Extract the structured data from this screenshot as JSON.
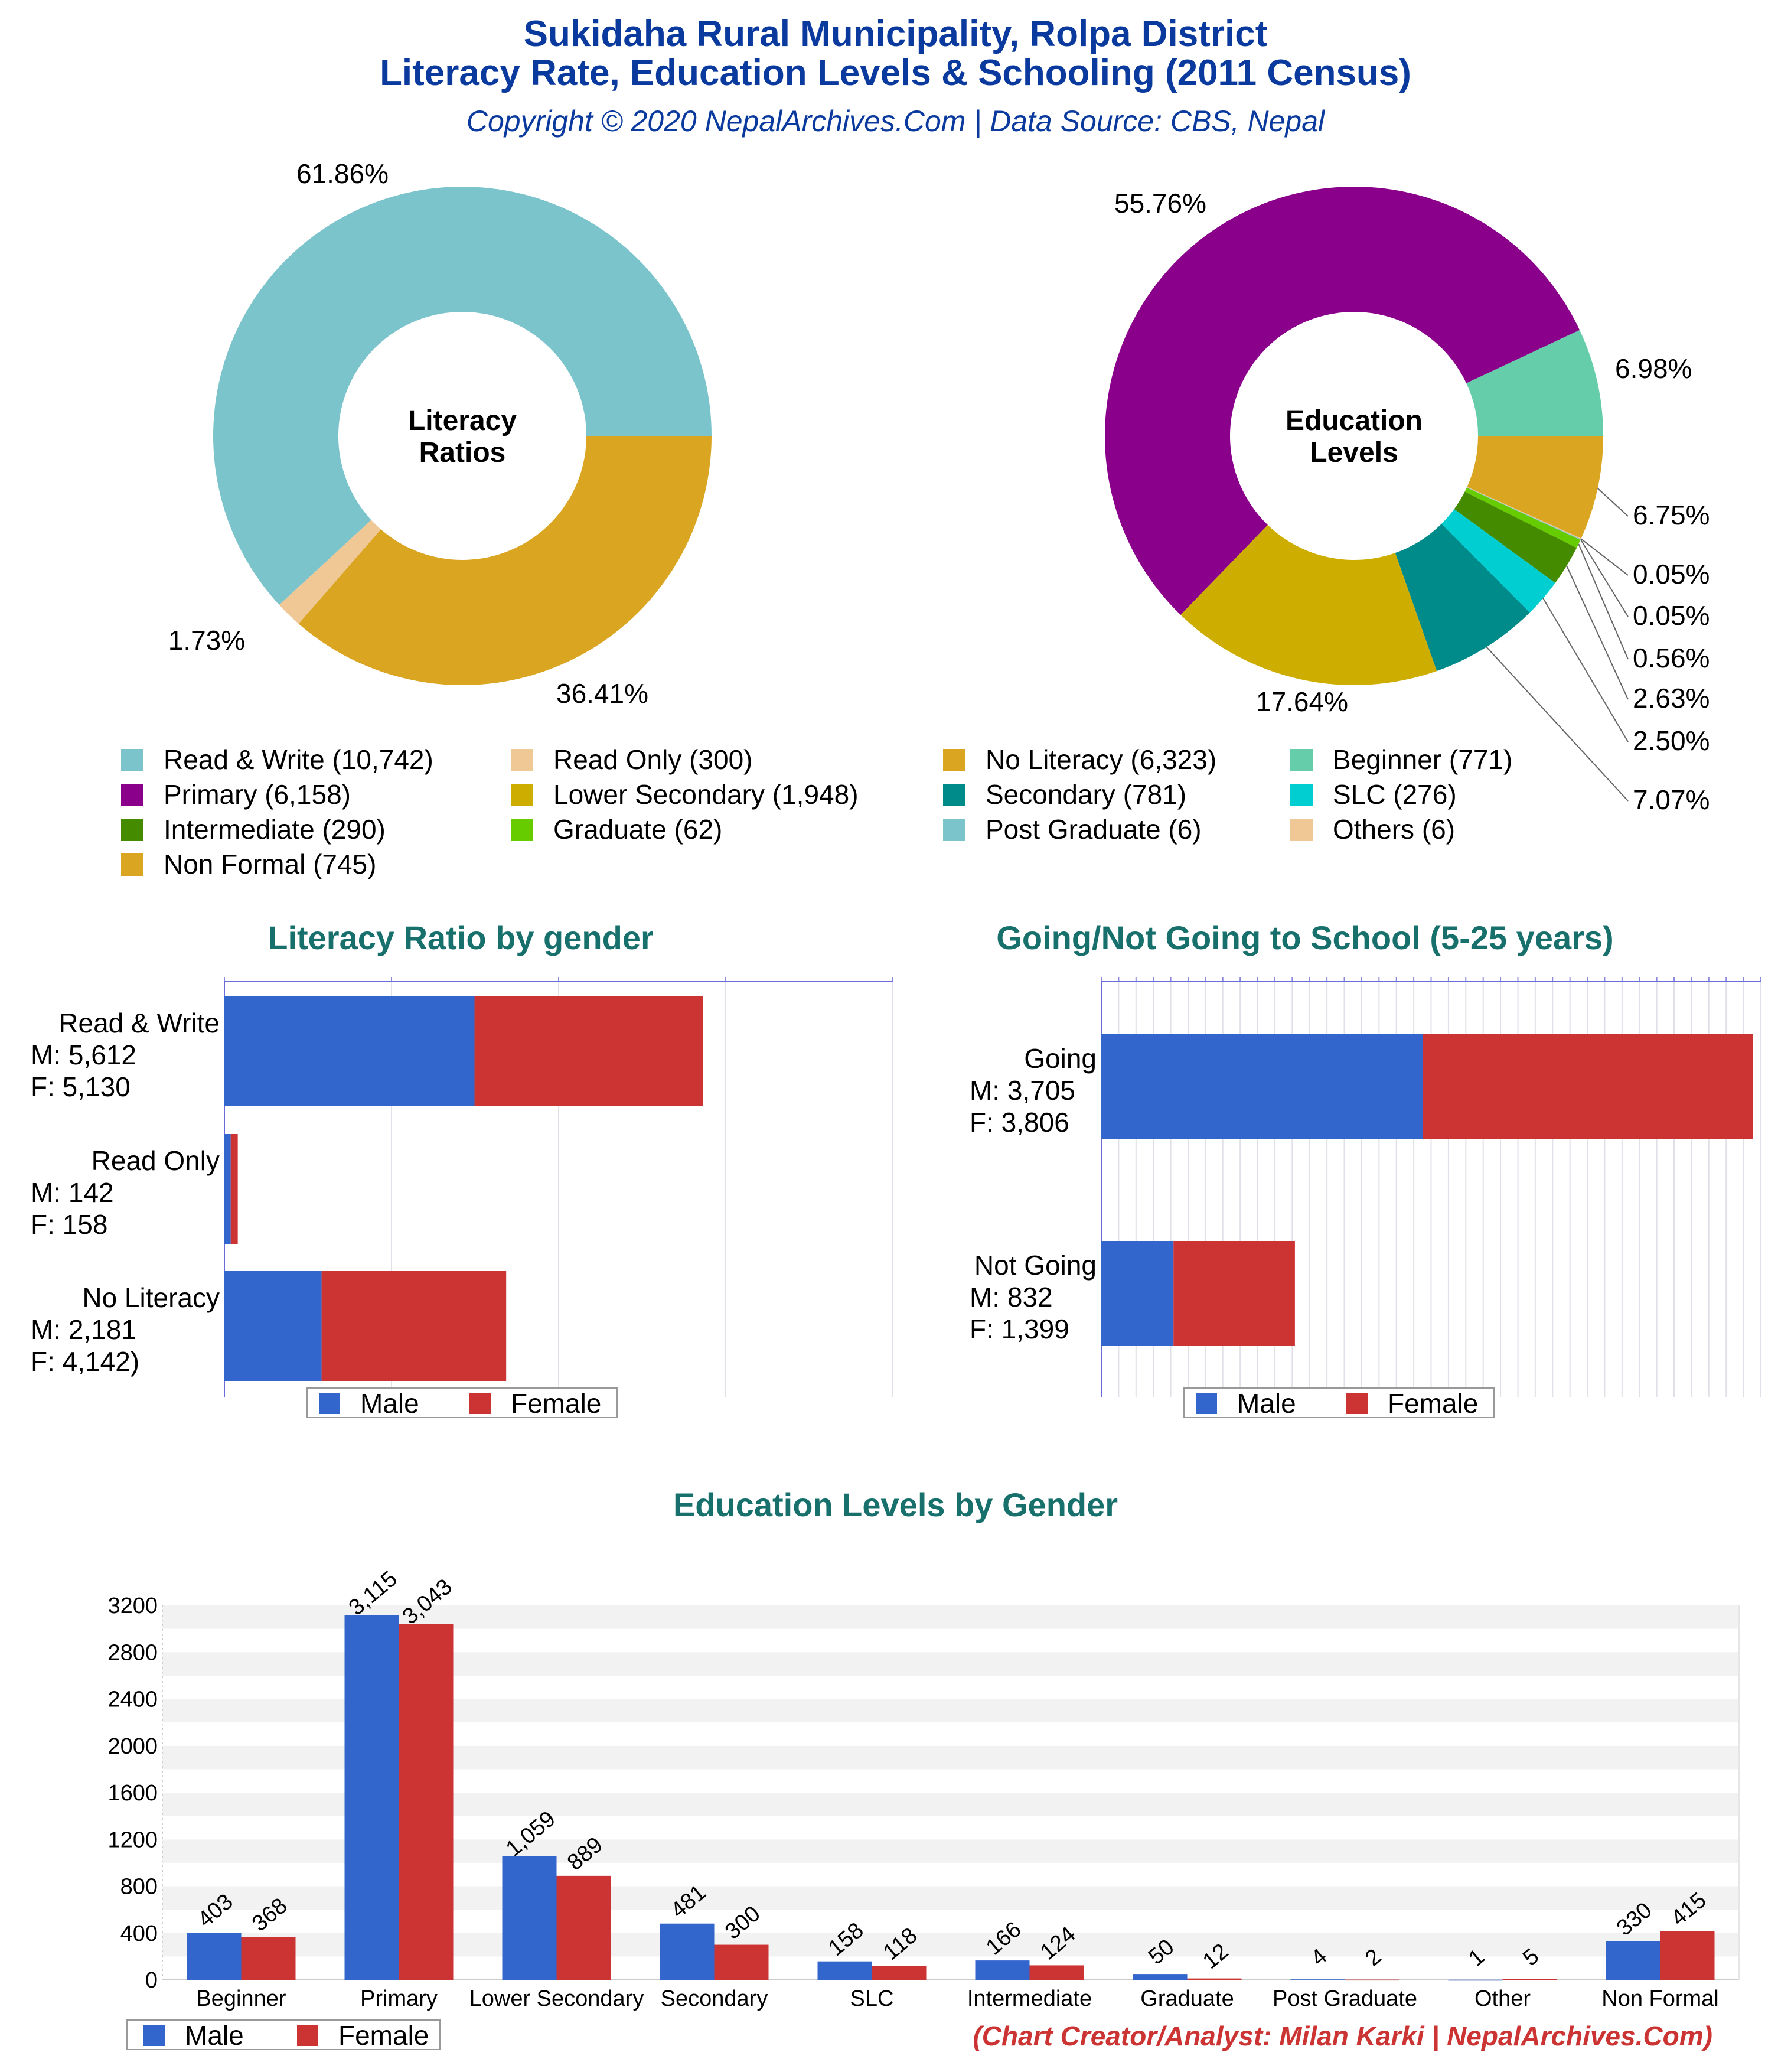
{
  "header": {
    "title_line1": "Sukidaha Rural Municipality, Rolpa District",
    "title_line2": "Literacy Rate, Education Levels & Schooling (2011 Census)",
    "subtitle": "Copyright © 2020 NepalArchives.Com | Data Source: CBS, Nepal"
  },
  "credit": "(Chart Creator/Analyst: Milan Karki | NepalArchives.Com)",
  "chart_data": [
    {
      "type": "pie",
      "center_label": [
        "Literacy",
        "Ratios"
      ],
      "slices": [
        {
          "label": "Read & Write",
          "value": 10742,
          "percent": "61.86%",
          "color": "#7cc4cc"
        },
        {
          "label": "Read Only",
          "value": 300,
          "percent": "1.73%",
          "color": "#f0c896"
        },
        {
          "label": "No Literacy",
          "value": 6323,
          "percent": "36.41%",
          "color": "#daa520"
        }
      ]
    },
    {
      "type": "pie",
      "center_label": [
        "Education",
        "Levels"
      ],
      "slices": [
        {
          "label": "Beginner",
          "value": 771,
          "percent": "6.98%",
          "color": "#66cdaa"
        },
        {
          "label": "Non Formal",
          "value": 745,
          "percent": "6.75%",
          "color": "#daa520"
        },
        {
          "label": "Others",
          "value": 6,
          "percent": "0.05%",
          "color": "#f0c896"
        },
        {
          "label": "Post Graduate",
          "value": 6,
          "percent": "0.05%",
          "color": "#7cc4cc"
        },
        {
          "label": "Graduate",
          "value": 62,
          "percent": "0.56%",
          "color": "#66cc00"
        },
        {
          "label": "Intermediate",
          "value": 290,
          "percent": "2.63%",
          "color": "#458b00"
        },
        {
          "label": "SLC",
          "value": 276,
          "percent": "2.50%",
          "color": "#00ced1"
        },
        {
          "label": "Secondary",
          "value": 781,
          "percent": "7.07%",
          "color": "#008b8b"
        },
        {
          "label": "Lower Secondary",
          "value": 1948,
          "percent": "17.64%",
          "color": "#cdad00"
        },
        {
          "label": "Primary",
          "value": 6158,
          "percent": "55.76%",
          "color": "#8b008b"
        }
      ]
    },
    {
      "type": "bar",
      "orientation": "horizontal",
      "stacked": true,
      "title": "Literacy Ratio by gender",
      "categories": [
        {
          "name": "Read & Write",
          "m_text": "M: 5,612",
          "f_text": "F: 5,130"
        },
        {
          "name": "Read Only",
          "m_text": "M: 142",
          "f_text": "F: 158"
        },
        {
          "name": "No Literacy",
          "m_text": "M: 2,181",
          "f_text": "F: 4,142)"
        }
      ],
      "series": [
        {
          "name": "Male",
          "color": "#3366cc",
          "values": [
            5612,
            142,
            2181
          ]
        },
        {
          "name": "Female",
          "color": "#cc3333",
          "values": [
            5130,
            158,
            4142
          ]
        }
      ],
      "xlim": [
        0,
        15000
      ],
      "legend": "bottom"
    },
    {
      "type": "bar",
      "orientation": "horizontal",
      "stacked": true,
      "title": "Going/Not Going to School (5-25 years)",
      "categories": [
        {
          "name": "Going",
          "m_text": "M: 3,705",
          "f_text": "F: 3,806"
        },
        {
          "name": "Not Going",
          "m_text": "M: 832",
          "f_text": "F: 1,399"
        }
      ],
      "series": [
        {
          "name": "Male",
          "color": "#3366cc",
          "values": [
            3705,
            832
          ]
        },
        {
          "name": "Female",
          "color": "#cc3333",
          "values": [
            3806,
            1399
          ]
        }
      ],
      "xlim": [
        0,
        7600
      ],
      "legend": "bottom"
    },
    {
      "type": "bar",
      "title": "Education Levels by Gender",
      "categories": [
        "Beginner",
        "Primary",
        "Lower Secondary",
        "Secondary",
        "SLC",
        "Intermediate",
        "Graduate",
        "Post Graduate",
        "Other",
        "Non Formal"
      ],
      "series": [
        {
          "name": "Male",
          "color": "#3366cc",
          "values": [
            403,
            3115,
            1059,
            481,
            158,
            166,
            50,
            4,
            1,
            330
          ],
          "labels": [
            "403",
            "3,115",
            "1,059",
            "481",
            "158",
            "166",
            "50",
            "4",
            "1",
            "330"
          ]
        },
        {
          "name": "Female",
          "color": "#cc3333",
          "values": [
            368,
            3043,
            889,
            300,
            118,
            124,
            12,
            2,
            5,
            415
          ],
          "labels": [
            "368",
            "3,043",
            "889",
            "300",
            "118",
            "124",
            "12",
            "2",
            "5",
            "415"
          ]
        }
      ],
      "yticks": [
        0,
        400,
        800,
        1200,
        1600,
        2000,
        2400,
        2800,
        3200
      ],
      "ylim": [
        0,
        3200
      ],
      "legend": "bottom-left"
    }
  ]
}
